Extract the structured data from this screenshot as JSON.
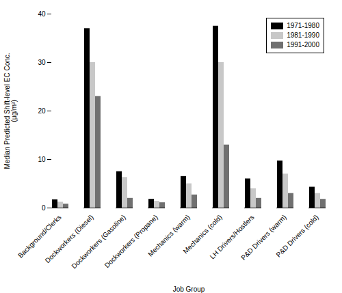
{
  "chart_data": {
    "type": "bar",
    "categories": [
      "Background/Clerks",
      "Dockworkers (Diesel)",
      "Dockworkers (Gasoline)",
      "Dockworkers (Propane)",
      "Mechanics (warm)",
      "Mechanics (cold)",
      "LH Drivers/Hostlers",
      "P&D Drivers (warm)",
      "P&D Drivers (cold)"
    ],
    "series": [
      {
        "name": "1971-1980",
        "color": "#000000",
        "values": [
          1.7,
          37.0,
          7.5,
          1.8,
          6.5,
          37.5,
          6.0,
          9.7,
          4.3
        ]
      },
      {
        "name": "1981-1990",
        "color": "#c8c8c8",
        "values": [
          1.2,
          30.0,
          6.3,
          1.4,
          5.0,
          30.0,
          4.0,
          7.0,
          3.0
        ]
      },
      {
        "name": "1991-2000",
        "color": "#707070",
        "values": [
          0.8,
          23.0,
          2.0,
          1.1,
          2.7,
          13.0,
          2.0,
          3.0,
          1.8
        ]
      }
    ],
    "xlabel": "Job Group",
    "ylabel": "Median Predicted Shift-level EC Conc.\n(μg/m³)",
    "ylim": [
      0,
      40
    ],
    "yticks": [
      0,
      10,
      20,
      30,
      40
    ],
    "grid": false,
    "legend": "upper right"
  }
}
